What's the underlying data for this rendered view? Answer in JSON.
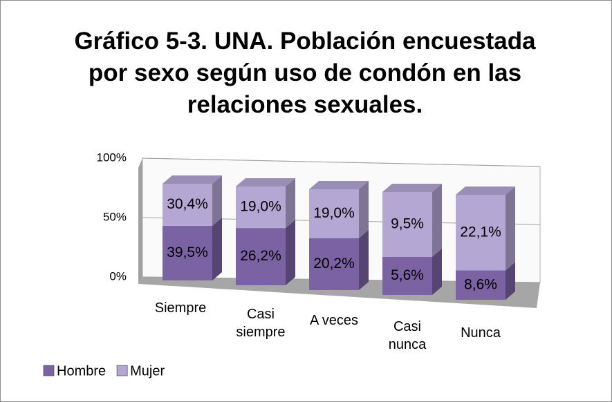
{
  "chart_data": {
    "type": "bar",
    "stacking": "percent",
    "title": "Gráfico 5-3. UNA. Población encuestada por sexo según uso de condón en las relaciones sexuales.",
    "categories": [
      "Siempre",
      "Casi siempre",
      "A veces",
      "Casi nunca",
      "Nunca"
    ],
    "series": [
      {
        "name": "Hombre",
        "color": "#7b62a3",
        "values": [
          39.5,
          26.2,
          20.2,
          5.6,
          8.6
        ],
        "value_labels": [
          "39,5%",
          "26,2%",
          "20,2%",
          "5,6%",
          "8,6%"
        ]
      },
      {
        "name": "Mujer",
        "color": "#b4a7d3",
        "values": [
          30.4,
          19.0,
          19.0,
          9.5,
          22.1
        ],
        "value_labels": [
          "30,4%",
          "19,0%",
          "19,0%",
          "9,5%",
          "22,1%"
        ]
      }
    ],
    "ylim": [
      0,
      100
    ],
    "yticks": [
      {
        "value": 0,
        "label": "0%"
      },
      {
        "value": 50,
        "label": "50%"
      },
      {
        "value": 100,
        "label": "100%"
      }
    ],
    "grid": true,
    "legend": "bottom-left"
  }
}
